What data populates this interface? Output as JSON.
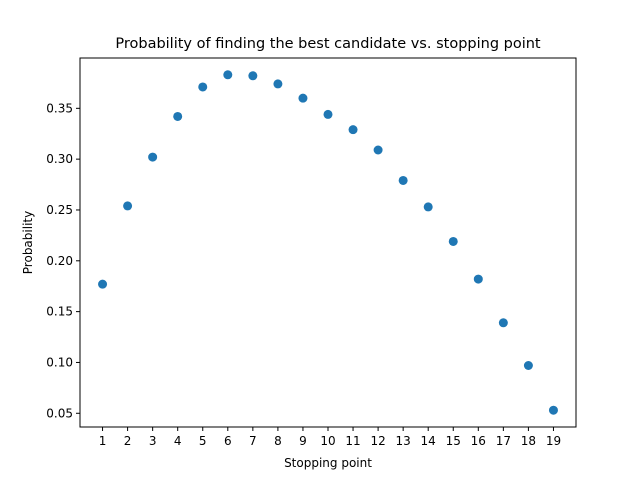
{
  "chart_data": {
    "type": "scatter",
    "title": "Probability of finding the best candidate vs. stopping point",
    "xlabel": "Stopping point",
    "ylabel": "Probability",
    "x": [
      1,
      2,
      3,
      4,
      5,
      6,
      7,
      8,
      9,
      10,
      11,
      12,
      13,
      14,
      15,
      16,
      17,
      18,
      19
    ],
    "y": [
      0.177,
      0.254,
      0.302,
      0.342,
      0.371,
      0.383,
      0.382,
      0.374,
      0.36,
      0.344,
      0.329,
      0.309,
      0.279,
      0.253,
      0.219,
      0.182,
      0.139,
      0.097,
      0.053
    ],
    "xlim": [
      0.1,
      19.9
    ],
    "ylim": [
      0.0365,
      0.3995
    ],
    "xticks": [
      1,
      2,
      3,
      4,
      5,
      6,
      7,
      8,
      9,
      10,
      11,
      12,
      13,
      14,
      15,
      16,
      17,
      18,
      19
    ],
    "yticks": [
      "0.05",
      "0.10",
      "0.15",
      "0.20",
      "0.25",
      "0.30",
      "0.35"
    ],
    "marker_color": "#1f77b4",
    "grid": false,
    "legend": "none"
  }
}
